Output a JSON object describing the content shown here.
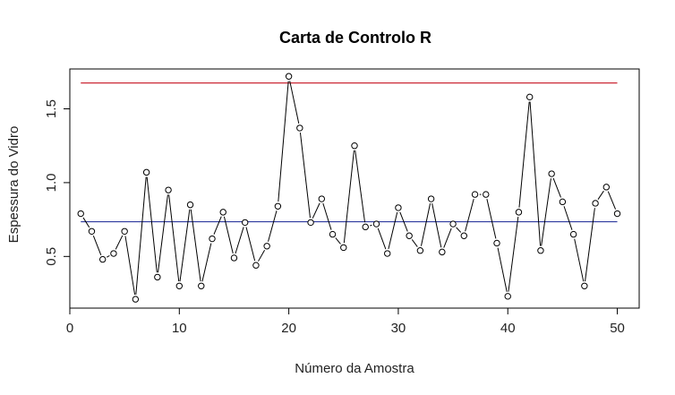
{
  "chart_data": {
    "type": "line",
    "title": "Carta de Controlo R",
    "xlabel": "Número da Amostra",
    "ylabel": "Espessura do Vidro",
    "xlim": [
      0,
      52
    ],
    "ylim": [
      0.15,
      1.77
    ],
    "x_ticks": [
      0,
      10,
      20,
      30,
      40,
      50
    ],
    "x_tick_labels": [
      "0",
      "10",
      "20",
      "30",
      "40",
      "50"
    ],
    "y_ticks": [
      0.5,
      1.0,
      1.5
    ],
    "y_tick_labels": [
      "0.5",
      "1.0",
      "1.5"
    ],
    "grid": false,
    "marker": "open-circle",
    "series": [
      {
        "x": [
          1,
          2,
          3,
          4,
          5,
          6,
          7,
          8,
          9,
          10,
          11,
          12,
          13,
          14,
          15,
          16,
          17,
          18,
          19,
          20,
          21,
          22,
          23,
          24,
          25,
          26,
          27,
          28,
          29,
          30,
          31,
          32,
          33,
          34,
          35,
          36,
          37,
          38,
          39,
          40,
          41,
          42,
          43,
          44,
          45,
          46,
          47,
          48,
          49,
          50
        ],
        "values": [
          0.79,
          0.67,
          0.48,
          0.52,
          0.67,
          0.21,
          1.07,
          0.36,
          0.95,
          0.3,
          0.85,
          0.3,
          0.62,
          0.8,
          0.49,
          0.73,
          0.44,
          0.57,
          0.84,
          1.72,
          1.37,
          0.73,
          0.89,
          0.65,
          0.56,
          1.25,
          0.7,
          0.72,
          0.52,
          0.83,
          0.64,
          0.54,
          0.89,
          0.53,
          0.72,
          0.64,
          0.92,
          0.92,
          0.59,
          0.23,
          0.8,
          1.58,
          0.54,
          1.06,
          0.87,
          0.65,
          0.3,
          0.86,
          0.97,
          0.79
        ],
        "color": "#000000"
      }
    ],
    "reference_lines": [
      {
        "y": 1.675,
        "x_from": 1,
        "x_to": 50,
        "color": "#cc2936"
      },
      {
        "y": 0.735,
        "x_from": 1,
        "x_to": 50,
        "color": "#2e3a9e"
      }
    ]
  }
}
